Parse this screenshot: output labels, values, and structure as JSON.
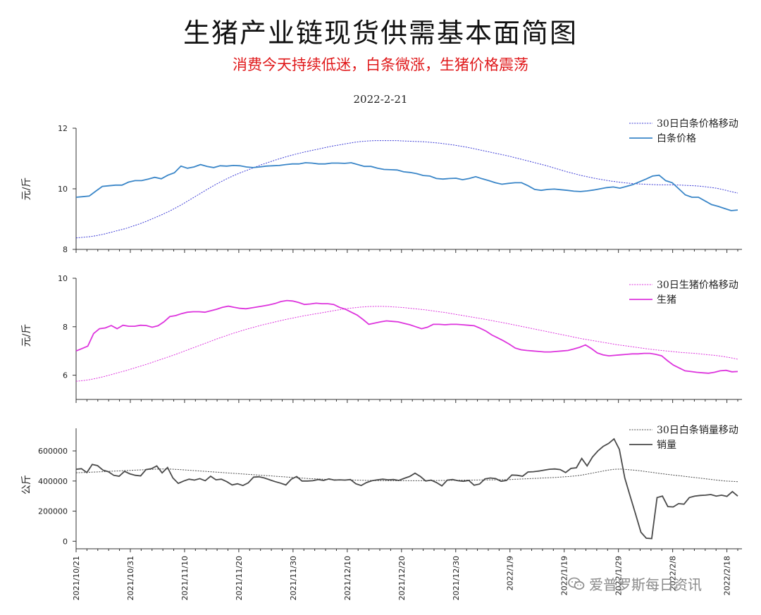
{
  "header": {
    "title": "生猪产业链现货供需基本面简图",
    "subtitle": "消费今天持续低迷，白条微涨，生猪价格震荡",
    "date": "2022-2-21"
  },
  "watermark": {
    "text": "爱普罗斯每日资讯",
    "icon": "wechat-icon"
  },
  "colors": {
    "baitiao": "#3a86c8",
    "baitiao_ma": "#3b3bd6",
    "pig": "#dd34dd",
    "pig_ma": "#dd34dd",
    "volume": "#4a4a4a",
    "volume_ma": "#4a4a4a"
  },
  "chart_data": [
    {
      "type": "line",
      "id": "baitiao",
      "ylabel": "元/斤",
      "ylim": [
        8,
        12
      ],
      "yticks": [
        8,
        10,
        12
      ],
      "legend_position": "top-right",
      "x_start": "2021-10-21",
      "x_ticks": [
        "2021/10/21",
        "2021/10/31",
        "2021/11/10",
        "2021/11/20",
        "2021/11/30",
        "2021/12/10",
        "2021/12/20",
        "2021/12/30",
        "2022/1/9",
        "2022/1/19",
        "2022/1/29",
        "2022/2/8",
        "2022/2/18"
      ],
      "series": [
        {
          "name": "30日白条价格移动",
          "style": "dotted",
          "values": [
            8.38,
            8.4,
            8.42,
            8.46,
            8.51,
            8.57,
            8.63,
            8.69,
            8.77,
            8.85,
            8.94,
            9.04,
            9.14,
            9.25,
            9.37,
            9.5,
            9.64,
            9.78,
            9.92,
            10.06,
            10.19,
            10.31,
            10.42,
            10.52,
            10.61,
            10.7,
            10.79,
            10.87,
            10.95,
            11.02,
            11.09,
            11.15,
            11.21,
            11.26,
            11.31,
            11.36,
            11.41,
            11.45,
            11.49,
            11.53,
            11.56,
            11.58,
            11.59,
            11.59,
            11.59,
            11.59,
            11.58,
            11.57,
            11.56,
            11.55,
            11.53,
            11.51,
            11.48,
            11.45,
            11.41,
            11.37,
            11.32,
            11.27,
            11.22,
            11.17,
            11.12,
            11.07,
            11.01,
            10.95,
            10.89,
            10.83,
            10.77,
            10.7,
            10.63,
            10.56,
            10.5,
            10.44,
            10.39,
            10.34,
            10.3,
            10.26,
            10.23,
            10.2,
            10.18,
            10.16,
            10.15,
            10.14,
            10.13,
            10.13,
            10.13,
            10.12,
            10.11,
            10.1,
            10.08,
            10.05,
            10.02,
            9.97,
            9.91,
            9.86
          ]
        },
        {
          "name": "白条价格",
          "style": "solid",
          "values": [
            9.72,
            9.74,
            9.76,
            9.92,
            10.08,
            10.1,
            10.12,
            10.12,
            10.22,
            10.27,
            10.27,
            10.32,
            10.38,
            10.33,
            10.45,
            10.53,
            10.75,
            10.68,
            10.72,
            10.8,
            10.74,
            10.7,
            10.76,
            10.75,
            10.77,
            10.76,
            10.72,
            10.7,
            10.72,
            10.75,
            10.76,
            10.77,
            10.8,
            10.82,
            10.82,
            10.86,
            10.85,
            10.82,
            10.82,
            10.85,
            10.85,
            10.84,
            10.86,
            10.8,
            10.74,
            10.74,
            10.68,
            10.64,
            10.63,
            10.62,
            10.56,
            10.54,
            10.5,
            10.44,
            10.42,
            10.34,
            10.32,
            10.34,
            10.35,
            10.3,
            10.34,
            10.4,
            10.33,
            10.27,
            10.2,
            10.15,
            10.18,
            10.2,
            10.2,
            10.1,
            9.98,
            9.95,
            9.98,
            9.99,
            9.97,
            9.95,
            9.92,
            9.91,
            9.93,
            9.96,
            10.0,
            10.04,
            10.06,
            10.02,
            10.08,
            10.14,
            10.23,
            10.32,
            10.42,
            10.45,
            10.27,
            10.2,
            10.0,
            9.8,
            9.72,
            9.72,
            9.6,
            9.48,
            9.42,
            9.35,
            9.28,
            9.3
          ]
        }
      ]
    },
    {
      "type": "line",
      "id": "pig",
      "ylabel": "元/斤",
      "ylim": [
        5,
        10
      ],
      "yticks": [
        6,
        8,
        10
      ],
      "legend_position": "top-right",
      "series": [
        {
          "name": "30日生猪价格移动",
          "style": "dotted",
          "values": [
            5.75,
            5.78,
            5.82,
            5.88,
            5.95,
            6.03,
            6.11,
            6.19,
            6.28,
            6.37,
            6.46,
            6.56,
            6.66,
            6.76,
            6.86,
            6.97,
            7.08,
            7.19,
            7.3,
            7.41,
            7.52,
            7.62,
            7.72,
            7.81,
            7.9,
            7.98,
            8.06,
            8.13,
            8.2,
            8.27,
            8.33,
            8.39,
            8.45,
            8.5,
            8.55,
            8.6,
            8.65,
            8.7,
            8.75,
            8.78,
            8.81,
            8.83,
            8.84,
            8.84,
            8.83,
            8.81,
            8.79,
            8.76,
            8.73,
            8.7,
            8.66,
            8.62,
            8.58,
            8.53,
            8.48,
            8.43,
            8.38,
            8.33,
            8.28,
            8.22,
            8.17,
            8.11,
            8.05,
            7.99,
            7.93,
            7.87,
            7.81,
            7.75,
            7.69,
            7.63,
            7.57,
            7.51,
            7.46,
            7.41,
            7.36,
            7.31,
            7.26,
            7.22,
            7.18,
            7.14,
            7.1,
            7.06,
            7.03,
            7.0,
            6.97,
            6.94,
            6.92,
            6.9,
            6.87,
            6.84,
            6.81,
            6.77,
            6.72,
            6.66
          ]
        },
        {
          "name": "生猪",
          "style": "solid",
          "values": [
            7.0,
            7.1,
            7.2,
            7.72,
            7.92,
            7.95,
            8.05,
            7.92,
            8.06,
            8.02,
            8.02,
            8.06,
            8.05,
            7.98,
            8.04,
            8.2,
            8.42,
            8.46,
            8.54,
            8.6,
            8.62,
            8.62,
            8.6,
            8.66,
            8.72,
            8.8,
            8.85,
            8.8,
            8.76,
            8.74,
            8.78,
            8.82,
            8.86,
            8.9,
            8.96,
            9.04,
            9.08,
            9.06,
            9.0,
            8.92,
            8.94,
            8.97,
            8.95,
            8.95,
            8.92,
            8.8,
            8.72,
            8.6,
            8.48,
            8.3,
            8.1,
            8.15,
            8.2,
            8.24,
            8.22,
            8.2,
            8.14,
            8.08,
            8.0,
            7.92,
            7.98,
            8.1,
            8.1,
            8.08,
            8.1,
            8.1,
            8.08,
            8.06,
            8.04,
            7.94,
            7.82,
            7.66,
            7.54,
            7.42,
            7.28,
            7.12,
            7.05,
            7.02,
            7.0,
            6.98,
            6.96,
            6.96,
            6.98,
            7.0,
            7.02,
            7.08,
            7.15,
            7.25,
            7.1,
            6.92,
            6.84,
            6.8,
            6.82,
            6.84,
            6.86,
            6.88,
            6.88,
            6.9,
            6.9,
            6.86,
            6.8,
            6.6,
            6.42,
            6.3,
            6.18,
            6.15,
            6.12,
            6.1,
            6.08,
            6.12,
            6.18,
            6.2,
            6.14,
            6.15
          ]
        }
      ]
    },
    {
      "type": "line",
      "id": "volume",
      "ylabel": "公斤",
      "ylim": [
        -50000,
        750000
      ],
      "yticks": [
        0,
        200000,
        400000,
        600000
      ],
      "legend_position": "top-right",
      "series": [
        {
          "name": "30日白条销量移动",
          "style": "dotted",
          "values": [
            455000,
            456000,
            458000,
            460000,
            462000,
            464000,
            466000,
            468000,
            470000,
            472000,
            474000,
            476000,
            478000,
            480000,
            480000,
            478000,
            476000,
            473000,
            470000,
            467000,
            464000,
            461000,
            458000,
            455000,
            452000,
            449000,
            446000,
            443000,
            440000,
            437000,
            434000,
            431000,
            428000,
            425000,
            422000,
            419000,
            416000,
            414000,
            412000,
            410000,
            409000,
            408000,
            407000,
            406000,
            405000,
            404000,
            403000,
            403000,
            402000,
            402000,
            402000,
            402000,
            402000,
            402000,
            403000,
            403000,
            404000,
            404000,
            405000,
            405000,
            406000,
            406000,
            407000,
            407000,
            408000,
            408000,
            409000,
            410000,
            412000,
            414000,
            416000,
            418000,
            420000,
            422000,
            424000,
            427000,
            430000,
            434000,
            440000,
            448000,
            456000,
            464000,
            472000,
            478000,
            479000,
            476000,
            472000,
            468000,
            462000,
            456000,
            450000,
            445000,
            440000,
            435000,
            430000,
            425000,
            420000,
            415000,
            410000,
            405000,
            400000,
            398000,
            396000
          ]
        },
        {
          "name": "销量",
          "style": "solid",
          "values": [
            478000,
            482000,
            456000,
            510000,
            502000,
            472000,
            462000,
            438000,
            432000,
            464000,
            448000,
            438000,
            434000,
            476000,
            482000,
            500000,
            454000,
            490000,
            420000,
            384000,
            400000,
            412000,
            406000,
            416000,
            402000,
            432000,
            408000,
            412000,
            396000,
            374000,
            382000,
            370000,
            388000,
            426000,
            428000,
            420000,
            408000,
            396000,
            386000,
            374000,
            412000,
            430000,
            400000,
            400000,
            402000,
            410000,
            404000,
            414000,
            406000,
            408000,
            406000,
            410000,
            382000,
            370000,
            390000,
            402000,
            408000,
            412000,
            408000,
            410000,
            404000,
            418000,
            430000,
            452000,
            430000,
            400000,
            406000,
            390000,
            368000,
            406000,
            410000,
            402000,
            398000,
            404000,
            372000,
            380000,
            414000,
            420000,
            416000,
            398000,
            404000,
            440000,
            438000,
            432000,
            460000,
            462000,
            466000,
            472000,
            478000,
            480000,
            476000,
            456000,
            484000,
            488000,
            550000,
            500000,
            560000,
            600000,
            630000,
            650000,
            680000,
            610000,
            420000,
            300000,
            180000,
            60000,
            20000,
            18000,
            290000,
            300000,
            230000,
            228000,
            250000,
            246000,
            290000,
            300000,
            304000,
            306000,
            310000,
            300000,
            306000,
            298000,
            330000,
            300000
          ]
        }
      ]
    }
  ]
}
